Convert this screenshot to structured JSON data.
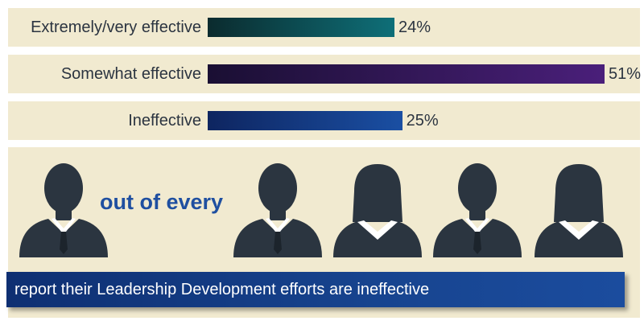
{
  "chart_data": {
    "type": "bar",
    "orientation": "horizontal",
    "categories": [
      "Extremely/very effective",
      "Somewhat effective",
      "Ineffective"
    ],
    "values": [
      24,
      51,
      25
    ],
    "value_labels": [
      "24%",
      "51%",
      "25%"
    ],
    "xlim": [
      0,
      51
    ],
    "colors": [
      "#0e6f78",
      "#4a1f7a",
      "#1a4fa3"
    ]
  },
  "infographic": {
    "phrase": "out of every",
    "highlighted_icons": 1,
    "total_icons": 5,
    "icons": [
      "male-person-icon",
      "male-person-icon",
      "female-person-icon",
      "male-person-icon",
      "female-person-icon"
    ],
    "banner_text": "report their Leadership Development efforts are ineffective"
  }
}
